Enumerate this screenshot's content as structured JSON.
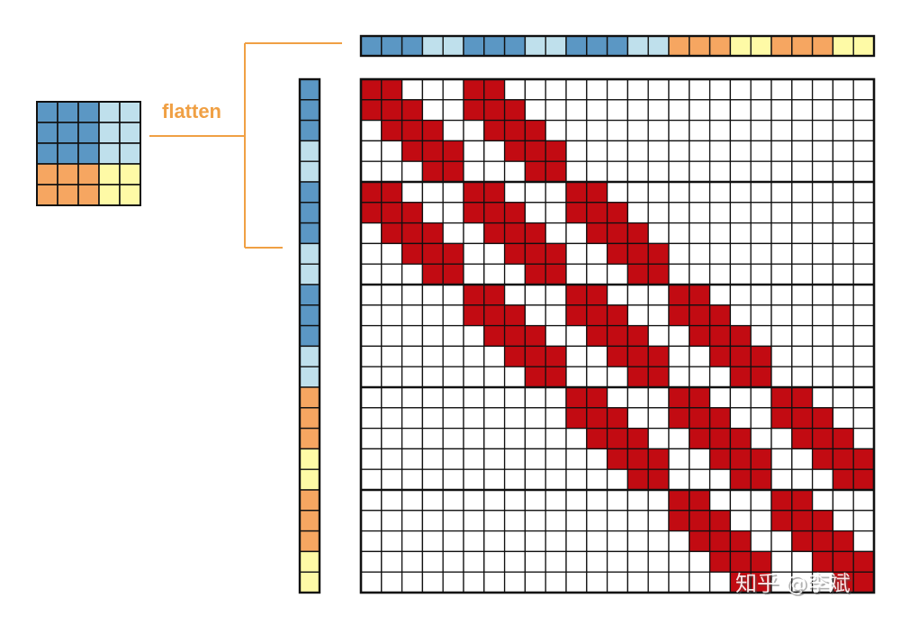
{
  "flatten_label": "flatten",
  "watermark": "知乎 @李斌",
  "colors": {
    "dark_blue": "#5b97c4",
    "light_blue": "#bfe0ec",
    "orange": "#f6a661",
    "yellow": "#fefaa6",
    "active": "#c20b12",
    "empty": "#ffffff",
    "grid_line": "#111111",
    "connector": "#f0a044"
  },
  "input_grid": [
    [
      "dark_blue",
      "dark_blue",
      "dark_blue",
      "light_blue",
      "light_blue"
    ],
    [
      "dark_blue",
      "dark_blue",
      "dark_blue",
      "light_blue",
      "light_blue"
    ],
    [
      "dark_blue",
      "dark_blue",
      "dark_blue",
      "light_blue",
      "light_blue"
    ],
    [
      "orange",
      "orange",
      "orange",
      "yellow",
      "yellow"
    ],
    [
      "orange",
      "orange",
      "orange",
      "yellow",
      "yellow"
    ]
  ],
  "flattened_vector": [
    "dark_blue",
    "dark_blue",
    "dark_blue",
    "light_blue",
    "light_blue",
    "dark_blue",
    "dark_blue",
    "dark_blue",
    "light_blue",
    "light_blue",
    "dark_blue",
    "dark_blue",
    "dark_blue",
    "light_blue",
    "light_blue",
    "orange",
    "orange",
    "orange",
    "yellow",
    "yellow",
    "orange",
    "orange",
    "orange",
    "yellow",
    "yellow"
  ],
  "matrix_size": 25
}
